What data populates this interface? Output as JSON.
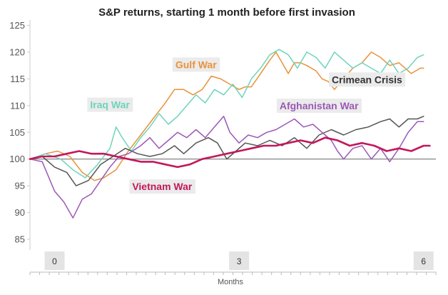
{
  "chart_data": {
    "type": "line",
    "title": "S&P returns, starting 1 month before first invasion",
    "xlabel": "Months",
    "ylabel": "",
    "xlim": [
      -0.4,
      6.2
    ],
    "ylim": [
      83,
      126
    ],
    "yticks": [
      85,
      90,
      95,
      100,
      105,
      110,
      115,
      120,
      125
    ],
    "xticks": [
      0,
      3,
      6
    ],
    "reference_line": 100,
    "grid": false,
    "legend": "none",
    "series": [
      {
        "name": "Gulf War",
        "color": "#E8923A",
        "label_x": 2.3,
        "label_y": 117,
        "values": [
          [
            -0.4,
            100
          ],
          [
            -0.15,
            101
          ],
          [
            0.05,
            101.5
          ],
          [
            0.25,
            100.5
          ],
          [
            0.45,
            97.5
          ],
          [
            0.65,
            96
          ],
          [
            0.8,
            96.5
          ],
          [
            1.0,
            98
          ],
          [
            1.2,
            101.5
          ],
          [
            1.4,
            104.5
          ],
          [
            1.6,
            107.5
          ],
          [
            1.8,
            110.5
          ],
          [
            1.95,
            113
          ],
          [
            2.1,
            113
          ],
          [
            2.25,
            112
          ],
          [
            2.4,
            113
          ],
          [
            2.55,
            115.5
          ],
          [
            2.7,
            115
          ],
          [
            2.85,
            114
          ],
          [
            3.0,
            113
          ],
          [
            3.1,
            113.5
          ],
          [
            3.2,
            113.5
          ],
          [
            3.35,
            116
          ],
          [
            3.5,
            118.5
          ],
          [
            3.6,
            120
          ],
          [
            3.7,
            118
          ],
          [
            3.8,
            116
          ],
          [
            3.9,
            118
          ],
          [
            4.0,
            118
          ],
          [
            4.1,
            117.5
          ],
          [
            4.25,
            116.5
          ],
          [
            4.35,
            115
          ],
          [
            4.45,
            114.5
          ],
          [
            4.55,
            113
          ],
          [
            4.7,
            115
          ],
          [
            4.85,
            117
          ],
          [
            5.0,
            118
          ],
          [
            5.15,
            120
          ],
          [
            5.3,
            119
          ],
          [
            5.45,
            117.5
          ],
          [
            5.6,
            118
          ],
          [
            5.8,
            116
          ],
          [
            5.95,
            117
          ],
          [
            6.0,
            117
          ]
        ]
      },
      {
        "name": "Iraq War",
        "color": "#6DD4BC",
        "label_x": 0.9,
        "label_y": 109.5,
        "values": [
          [
            -0.4,
            100
          ],
          [
            -0.15,
            101
          ],
          [
            0.1,
            100
          ],
          [
            0.3,
            98
          ],
          [
            0.5,
            96.5
          ],
          [
            0.7,
            99
          ],
          [
            0.9,
            102
          ],
          [
            1.0,
            106
          ],
          [
            1.1,
            104
          ],
          [
            1.25,
            101.5
          ],
          [
            1.4,
            104
          ],
          [
            1.55,
            106
          ],
          [
            1.7,
            108.5
          ],
          [
            1.85,
            106.5
          ],
          [
            2.0,
            108
          ],
          [
            2.15,
            110
          ],
          [
            2.3,
            112
          ],
          [
            2.45,
            110.5
          ],
          [
            2.6,
            113
          ],
          [
            2.75,
            112
          ],
          [
            2.9,
            114
          ],
          [
            3.05,
            111.5
          ],
          [
            3.2,
            115
          ],
          [
            3.35,
            117
          ],
          [
            3.5,
            119.5
          ],
          [
            3.65,
            120.5
          ],
          [
            3.8,
            119.5
          ],
          [
            3.95,
            117
          ],
          [
            4.1,
            120
          ],
          [
            4.25,
            119
          ],
          [
            4.4,
            117
          ],
          [
            4.55,
            120
          ],
          [
            4.7,
            118.5
          ],
          [
            4.85,
            117
          ],
          [
            5.0,
            118
          ],
          [
            5.15,
            117
          ],
          [
            5.3,
            116
          ],
          [
            5.45,
            118.5
          ],
          [
            5.6,
            116
          ],
          [
            5.75,
            117
          ],
          [
            5.9,
            119
          ],
          [
            6.0,
            119.5
          ]
        ]
      },
      {
        "name": "Crimean Crisis",
        "color": "#555555",
        "label_x": 5.08,
        "label_y": 114.2,
        "values": [
          [
            -0.4,
            100
          ],
          [
            -0.2,
            100.5
          ],
          [
            0.0,
            98.5
          ],
          [
            0.2,
            97.5
          ],
          [
            0.35,
            95
          ],
          [
            0.55,
            96
          ],
          [
            0.75,
            99
          ],
          [
            0.95,
            100.5
          ],
          [
            1.15,
            102
          ],
          [
            1.35,
            101
          ],
          [
            1.55,
            100.5
          ],
          [
            1.75,
            101
          ],
          [
            1.95,
            102.5
          ],
          [
            2.1,
            101
          ],
          [
            2.3,
            103
          ],
          [
            2.5,
            104
          ],
          [
            2.65,
            103
          ],
          [
            2.8,
            100
          ],
          [
            2.95,
            101.5
          ],
          [
            3.1,
            103
          ],
          [
            3.3,
            102.5
          ],
          [
            3.5,
            103.5
          ],
          [
            3.7,
            102.5
          ],
          [
            3.9,
            104
          ],
          [
            4.1,
            102
          ],
          [
            4.3,
            104.5
          ],
          [
            4.5,
            105.5
          ],
          [
            4.7,
            104.5
          ],
          [
            4.9,
            105.5
          ],
          [
            5.1,
            106
          ],
          [
            5.3,
            107
          ],
          [
            5.45,
            107.5
          ],
          [
            5.6,
            106
          ],
          [
            5.75,
            107.5
          ],
          [
            5.9,
            107.5
          ],
          [
            6.0,
            108
          ]
        ]
      },
      {
        "name": "Afghanistan War",
        "color": "#9B59B6",
        "label_x": 4.3,
        "label_y": 109.3,
        "values": [
          [
            -0.4,
            100
          ],
          [
            -0.2,
            99.5
          ],
          [
            0.0,
            94
          ],
          [
            0.15,
            92
          ],
          [
            0.3,
            89
          ],
          [
            0.45,
            92.5
          ],
          [
            0.6,
            93.5
          ],
          [
            0.75,
            96
          ],
          [
            0.9,
            98.5
          ],
          [
            1.05,
            100.5
          ],
          [
            1.2,
            101
          ],
          [
            1.4,
            102.5
          ],
          [
            1.55,
            104
          ],
          [
            1.7,
            102
          ],
          [
            1.85,
            103.5
          ],
          [
            2.0,
            105
          ],
          [
            2.15,
            104
          ],
          [
            2.3,
            105.5
          ],
          [
            2.45,
            104
          ],
          [
            2.6,
            106
          ],
          [
            2.75,
            108
          ],
          [
            2.85,
            105
          ],
          [
            3.0,
            103
          ],
          [
            3.15,
            104.5
          ],
          [
            3.3,
            104
          ],
          [
            3.45,
            105
          ],
          [
            3.6,
            105.5
          ],
          [
            3.75,
            106.5
          ],
          [
            3.9,
            107.5
          ],
          [
            4.05,
            106
          ],
          [
            4.2,
            106.5
          ],
          [
            4.35,
            105
          ],
          [
            4.5,
            103.5
          ],
          [
            4.6,
            101.5
          ],
          [
            4.7,
            100
          ],
          [
            4.85,
            102
          ],
          [
            5.0,
            102.5
          ],
          [
            5.15,
            100
          ],
          [
            5.3,
            102
          ],
          [
            5.45,
            99.5
          ],
          [
            5.6,
            102
          ],
          [
            5.75,
            105
          ],
          [
            5.9,
            107
          ],
          [
            6.0,
            107
          ]
        ]
      },
      {
        "name": "Vietnam War",
        "color": "#C2185B",
        "label_x": 1.75,
        "label_y": 94.2,
        "values": [
          [
            -0.4,
            100
          ],
          [
            -0.2,
            100.5
          ],
          [
            0.0,
            100.5
          ],
          [
            0.2,
            101
          ],
          [
            0.4,
            101.5
          ],
          [
            0.6,
            101
          ],
          [
            0.8,
            101
          ],
          [
            1.0,
            100.5
          ],
          [
            1.2,
            100
          ],
          [
            1.4,
            99.5
          ],
          [
            1.6,
            99.5
          ],
          [
            1.8,
            99
          ],
          [
            2.0,
            98.5
          ],
          [
            2.2,
            99
          ],
          [
            2.4,
            100
          ],
          [
            2.6,
            100.5
          ],
          [
            2.8,
            101
          ],
          [
            3.0,
            101.5
          ],
          [
            3.2,
            102
          ],
          [
            3.4,
            102.5
          ],
          [
            3.6,
            102.5
          ],
          [
            3.8,
            103
          ],
          [
            4.0,
            103.5
          ],
          [
            4.2,
            103
          ],
          [
            4.4,
            104
          ],
          [
            4.6,
            103.5
          ],
          [
            4.8,
            102.5
          ],
          [
            5.0,
            103
          ],
          [
            5.2,
            102.5
          ],
          [
            5.4,
            101.5
          ],
          [
            5.6,
            102
          ],
          [
            5.8,
            101.5
          ],
          [
            6.0,
            102.5
          ],
          [
            6.1,
            102.5
          ]
        ]
      }
    ]
  }
}
